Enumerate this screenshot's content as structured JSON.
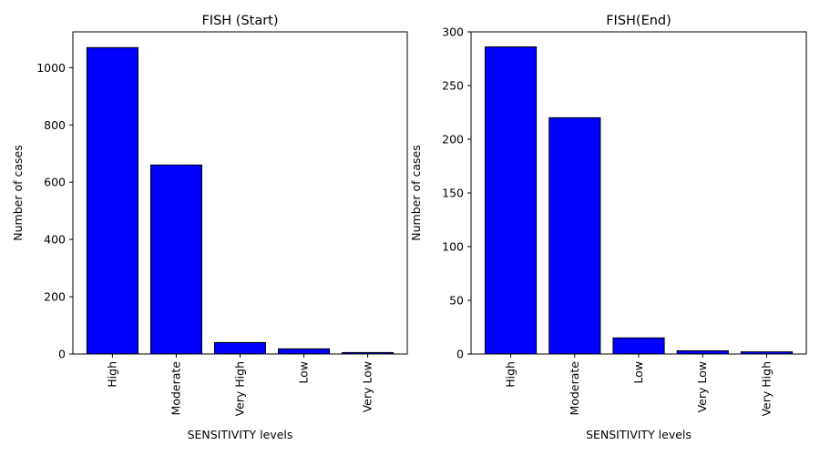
{
  "colors": {
    "bar_fill": "#0000ff",
    "bar_edge": "#000000",
    "background": "#ffffff"
  },
  "chart_data": [
    {
      "type": "bar",
      "title": "FISH (Start)",
      "xlabel": "SENSITIVITY levels",
      "ylabel": "Number of cases",
      "categories": [
        "High",
        "Moderate",
        "Very High",
        "Low",
        "Very Low"
      ],
      "values": [
        1070,
        660,
        40,
        18,
        5
      ],
      "ylim": [
        0,
        1125
      ],
      "yticks": [
        0,
        200,
        400,
        600,
        800,
        1000
      ],
      "grid": false
    },
    {
      "type": "bar",
      "title": "FISH(End)",
      "xlabel": "SENSITIVITY levels",
      "ylabel": "Number of cases",
      "categories": [
        "High",
        "Moderate",
        "Low",
        "Very Low",
        "Very High"
      ],
      "values": [
        286,
        220,
        15,
        3,
        2
      ],
      "ylim": [
        0,
        300
      ],
      "yticks": [
        0,
        50,
        100,
        150,
        200,
        250,
        300
      ],
      "grid": false
    }
  ]
}
